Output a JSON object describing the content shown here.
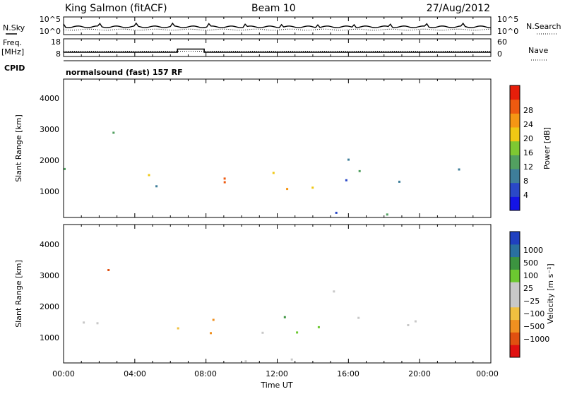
{
  "header": {
    "station": "King Salmon (fitACF)",
    "beam": "Beam 10",
    "date": "27/Aug/2012"
  },
  "side_labels": {
    "nsky": "N.Sky",
    "nsearch": "N.Search",
    "freq_line1": "Freq.",
    "freq_line2": "[MHz]",
    "nave": "Nave",
    "cpid": "CPID"
  },
  "cpid_text": "normalsound (fast) 157 RF",
  "chart_data": [
    {
      "type": "line",
      "name": "noise-panel",
      "left_ticks": [
        "10^5",
        "10^0"
      ],
      "right_ticks": [
        "10^5",
        "10^0"
      ],
      "series": [
        {
          "name": "N.Sky",
          "style": "solid"
        },
        {
          "name": "N.Search",
          "style": "dotted"
        }
      ]
    },
    {
      "type": "line",
      "name": "freq-nave-panel",
      "left_ticks": [
        "18",
        "8"
      ],
      "right_ticks": [
        "60",
        "0"
      ],
      "series": [
        {
          "name": "Freq",
          "style": "solid",
          "x": [
            0,
            6.4,
            6.4,
            7.9,
            7.9,
            24
          ],
          "y": [
            10.4,
            10.4,
            12.2,
            12.2,
            10.4,
            10.4
          ]
        },
        {
          "name": "Nave",
          "style": "dotted",
          "x": [
            0,
            24
          ],
          "y": [
            18,
            18
          ]
        }
      ]
    },
    {
      "type": "heatmap",
      "name": "power-panel",
      "ylabel": "Slant Range [km]",
      "yticks": [
        "1000",
        "2000",
        "3000",
        "4000"
      ],
      "ylim": [
        180,
        4600
      ],
      "colorbar_label": "Power [dB]",
      "colorbar_ticks": [
        "4",
        "8",
        "12",
        "16",
        "20",
        "24",
        "28"
      ],
      "colors": [
        "#1414e6",
        "#2a48c8",
        "#3e7e9a",
        "#52a060",
        "#7ec832",
        "#f0c814",
        "#f59614",
        "#ee5a10",
        "#e61e0a"
      ]
    },
    {
      "type": "heatmap",
      "name": "velocity-panel",
      "ylabel": "Slant Range [km]",
      "yticks": [
        "1000",
        "2000",
        "3000",
        "4000"
      ],
      "ylim": [
        180,
        4600
      ],
      "colorbar_label": "Velocity [m s⁻¹]",
      "colorbar_ticks": [
        "1000",
        "500",
        "100",
        "25",
        "−25",
        "−100",
        "−500",
        "−1000"
      ],
      "colors": [
        "#2040c0",
        "#2a70a0",
        "#3c9440",
        "#6cc830",
        "#c8c8c8",
        "#c8c8c8",
        "#f0c040",
        "#f09020",
        "#e05010",
        "#e01010"
      ]
    }
  ],
  "x_axis": {
    "label": "Time UT",
    "ticks": [
      "00:00",
      "04:00",
      "08:00",
      "12:00",
      "16:00",
      "20:00",
      "00:00"
    ],
    "range_hours": [
      0,
      24
    ]
  }
}
